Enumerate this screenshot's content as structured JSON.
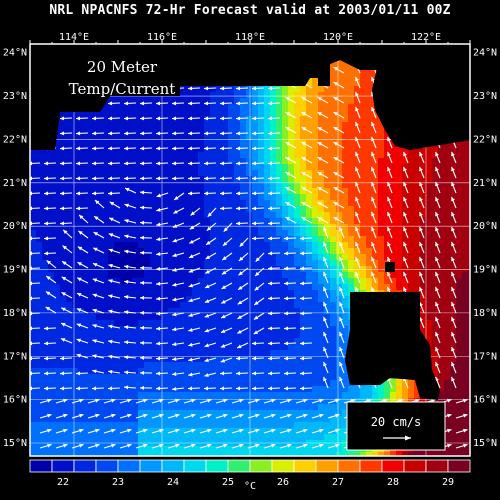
{
  "title": "NRL NPACNFS 72-Hr Forecast valid at 2003/01/11 00Z",
  "map_label": [
    "20 Meter",
    "Temp/Current"
  ],
  "lon_labels": [
    "114°E",
    "116°E",
    "118°E",
    "120°E",
    "122°E"
  ],
  "lat_labels": [
    "24°N",
    "23°N",
    "22°N",
    "21°N",
    "20°N",
    "19°N",
    "18°N",
    "17°N",
    "16°N",
    "15°N"
  ],
  "scale_vector": {
    "label": "20 cm/s"
  },
  "colorbar": {
    "unit": "°C",
    "tick_labels": [
      "22",
      "23",
      "24",
      "25",
      "26",
      "27",
      "28",
      "29"
    ],
    "colors": [
      "#0000a8",
      "#0010c8",
      "#0028e0",
      "#0048f0",
      "#0070ff",
      "#0098ff",
      "#00b8f8",
      "#00d8f0",
      "#00f0c8",
      "#30f070",
      "#88f020",
      "#d8f000",
      "#ffd000",
      "#ffa000",
      "#ff7000",
      "#ff3800",
      "#f00000",
      "#c80000",
      "#a00010",
      "#780020"
    ]
  },
  "colors": {
    "background": "#000000",
    "land": "#000000",
    "grid": "#ffffff",
    "vectors": "#ffffff"
  }
}
